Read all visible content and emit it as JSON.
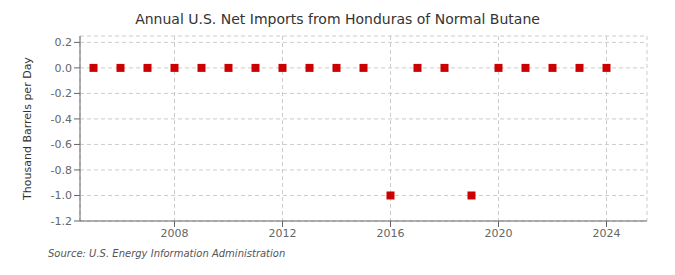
{
  "chart_data": {
    "type": "scatter",
    "title": "Annual U.S. Net Imports from Honduras of Normal Butane",
    "y_label": "Thousand Barrels per Day",
    "annotations": [
      "Source: U.S. Energy Information Administration"
    ],
    "x": [
      2005,
      2006,
      2007,
      2008,
      2009,
      2010,
      2011,
      2012,
      2013,
      2014,
      2015,
      2016,
      2017,
      2018,
      2019,
      2020,
      2021,
      2022,
      2023,
      2024
    ],
    "values": [
      0,
      0,
      0,
      0,
      0,
      0,
      0,
      0,
      0,
      0,
      0,
      -1,
      0,
      0,
      -1,
      0,
      0,
      0,
      0,
      0
    ],
    "color": "#cc0000",
    "marker": "square",
    "xlim": [
      2004.5,
      2025.5
    ],
    "xticks": [
      2008,
      2012,
      2016,
      2020,
      2024
    ],
    "ylim": [
      -1.2,
      0.25
    ],
    "yticks": [
      0.2,
      {
        "value": 0,
        "label": "0.0"
      },
      -0.2,
      -0.4,
      -0.6,
      -0.8,
      {
        "value": -1,
        "label": "-1.0"
      },
      -1.2
    ],
    "grid": true
  }
}
